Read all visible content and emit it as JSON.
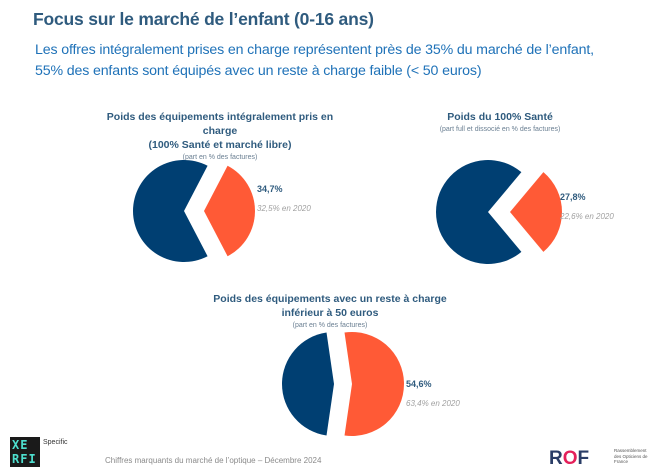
{
  "header": {
    "title": "Focus sur le marché de l’enfant (0-16 ans)",
    "subtitle_line1": "Les offres intégralement prises en charge représentent près de 35% du marché de l’enfant,",
    "subtitle_line2": "55% des enfants sont équipés avec un reste à charge faible (< 50 euros)"
  },
  "colors": {
    "primary": "#003f72",
    "highlight": "#ff5a36",
    "title": "#2f5b7e",
    "subtitle": "#1f72b8"
  },
  "chart_data": [
    {
      "type": "pie",
      "title_line1": "Poids des équipements intégralement pris en charge",
      "title_line2": "(100% Santé et marché libre)",
      "note": "(part en % des factures)",
      "slices": [
        {
          "name": "highlight",
          "value": 34.7,
          "color": "#ff5a36",
          "exploded": true
        },
        {
          "name": "rest",
          "value": 65.3,
          "color": "#003f72"
        }
      ],
      "value_label": "34,7%",
      "previous_label": "32,5% en 2020",
      "previous_value": 32.5
    },
    {
      "type": "pie",
      "title_line1": "Poids du 100% Santé",
      "title_line2": "",
      "note": "(part full et dissocié en % des factures)",
      "slices": [
        {
          "name": "highlight",
          "value": 27.8,
          "color": "#ff5a36",
          "exploded": true
        },
        {
          "name": "rest",
          "value": 72.2,
          "color": "#003f72"
        }
      ],
      "value_label": "27,8%",
      "previous_label": "22,6% en 2020",
      "previous_value": 22.6
    },
    {
      "type": "pie",
      "title_line1": "Poids des équipements avec un reste à charge",
      "title_line2": "inférieur à 50 euros",
      "note": "(part en % des factures)",
      "slices": [
        {
          "name": "highlight",
          "value": 54.6,
          "color": "#ff5a36",
          "exploded": true
        },
        {
          "name": "rest",
          "value": 45.4,
          "color": "#003f72"
        }
      ],
      "value_label": "54,6%",
      "previous_label": "63,4% en 2020",
      "previous_value": 63.4
    }
  ],
  "footer": {
    "text": "Chiffres marquants du marché de l’optique – Décembre 2024",
    "xerfi_logo": "XE RFI",
    "xerfi_tag": "Specific",
    "rof_logo": "ROF",
    "rof_tag": "Rassemblement des Opticiens de France"
  }
}
